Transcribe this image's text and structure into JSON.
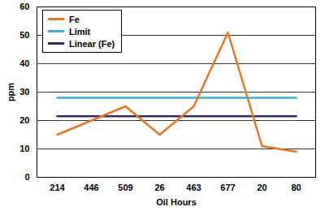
{
  "chart_data": {
    "type": "line",
    "x_label": "Oil Hours",
    "y_label": "ppm",
    "categories": [
      "214",
      "446",
      "509",
      "26",
      "463",
      "677",
      "20",
      "80"
    ],
    "series": [
      {
        "name": "Fe",
        "color": "#e87722",
        "values": [
          15,
          20,
          25,
          15,
          25,
          51,
          11,
          9
        ]
      },
      {
        "name": "Limit",
        "color": "#41a8dc",
        "values": [
          28,
          28,
          28,
          28,
          28,
          28,
          28,
          28
        ]
      },
      {
        "name": "Linear (Fe)",
        "color": "#3b2768",
        "values": [
          21.5,
          21.5,
          21.5,
          21.5,
          21.5,
          21.5,
          21.5,
          21.5
        ]
      }
    ],
    "ylim": [
      0,
      60
    ],
    "yticks": [
      0,
      10,
      20,
      30,
      40,
      50,
      60
    ],
    "grid": true,
    "legend": "top-left",
    "line_style": "solid",
    "marker": "none"
  }
}
